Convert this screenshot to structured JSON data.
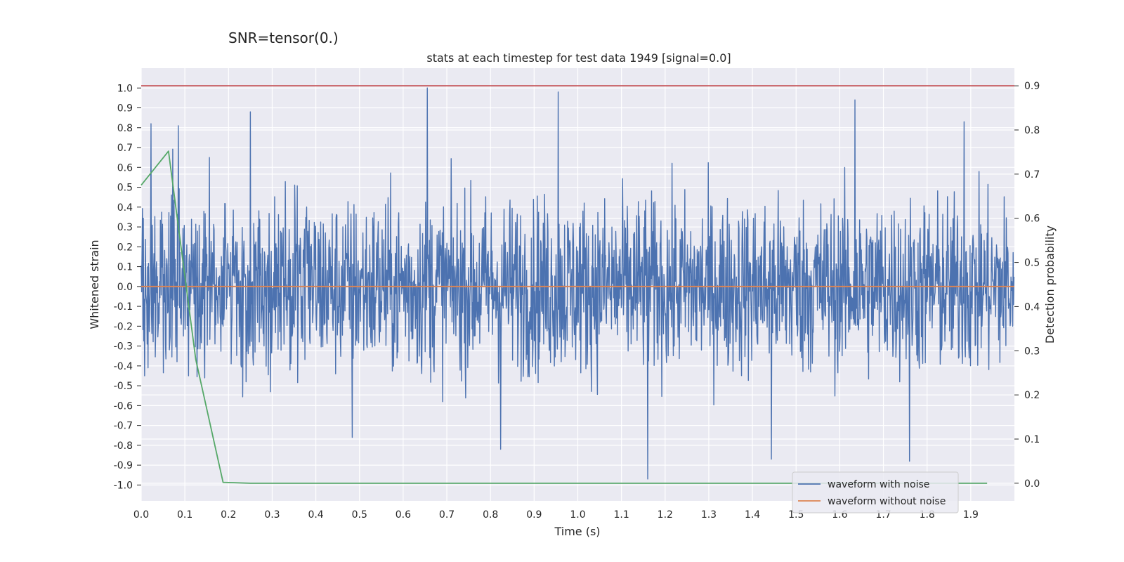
{
  "suptitle": "SNR=tensor(0.)",
  "chart_data": {
    "type": "line",
    "title": "stats at each timestep for test data 1949 [signal=0.0]",
    "xlabel": "Time (s)",
    "ylabel": "Whitened strain",
    "ylabel_right": "Detection probability",
    "xlim": [
      0.0,
      2.0
    ],
    "ylim": [
      -1.08,
      1.1
    ],
    "ylim_right": [
      -0.04,
      0.94
    ],
    "x_ticks": [
      "0.0",
      "0.1",
      "0.2",
      "0.3",
      "0.4",
      "0.5",
      "0.6",
      "0.7",
      "0.8",
      "0.9",
      "1.0",
      "1.1",
      "1.2",
      "1.3",
      "1.4",
      "1.5",
      "1.6",
      "1.7",
      "1.8",
      "1.9"
    ],
    "y_ticks": [
      "1.0",
      "0.9",
      "0.8",
      "0.7",
      "0.6",
      "0.5",
      "0.4",
      "0.3",
      "0.2",
      "0.1",
      "0.0",
      "-0.1",
      "-0.2",
      "-0.3",
      "-0.4",
      "-0.5",
      "-0.6",
      "-0.7",
      "-0.8",
      "-0.9",
      "-1.0"
    ],
    "y_ticks_right": [
      "0.9",
      "0.8",
      "0.7",
      "0.6",
      "0.5",
      "0.4",
      "0.3",
      "0.2",
      "0.1",
      "0.0"
    ],
    "grid": true,
    "legend_position": "lower-right",
    "series": [
      {
        "name": "waveform with noise",
        "color": "#4c72b0",
        "axis": "left",
        "n_samples": 2048,
        "dt": 0.0009765625,
        "spikes": [
          {
            "x": 0.022,
            "y": 0.82
          },
          {
            "x": 0.085,
            "y": 0.81
          },
          {
            "x": 0.25,
            "y": 0.88
          },
          {
            "x": 0.655,
            "y": 1.0
          },
          {
            "x": 0.955,
            "y": 0.98
          },
          {
            "x": 1.635,
            "y": 0.94
          },
          {
            "x": 1.885,
            "y": 0.83
          },
          {
            "x": 0.483,
            "y": -0.76
          },
          {
            "x": 0.823,
            "y": -0.82
          },
          {
            "x": 1.16,
            "y": -0.97
          },
          {
            "x": 1.443,
            "y": -0.87
          },
          {
            "x": 1.76,
            "y": -0.88
          }
        ]
      },
      {
        "name": "waveform without noise",
        "color": "#dd8452",
        "axis": "left",
        "x": [
          0.0,
          2.0
        ],
        "y": [
          0.0,
          0.0
        ]
      },
      {
        "name": "",
        "color": "#55a868",
        "axis": "right",
        "x": [
          0.0,
          0.0625,
          0.125,
          0.1875,
          0.25,
          0.3125,
          1.9375
        ],
        "y": [
          0.675,
          0.752,
          0.28,
          0.002,
          0.0,
          0.0,
          0.0
        ]
      },
      {
        "name": "",
        "color": "#c44e52",
        "axis": "right",
        "x": [
          0.0,
          2.0
        ],
        "y": [
          0.9,
          0.9
        ]
      }
    ]
  }
}
